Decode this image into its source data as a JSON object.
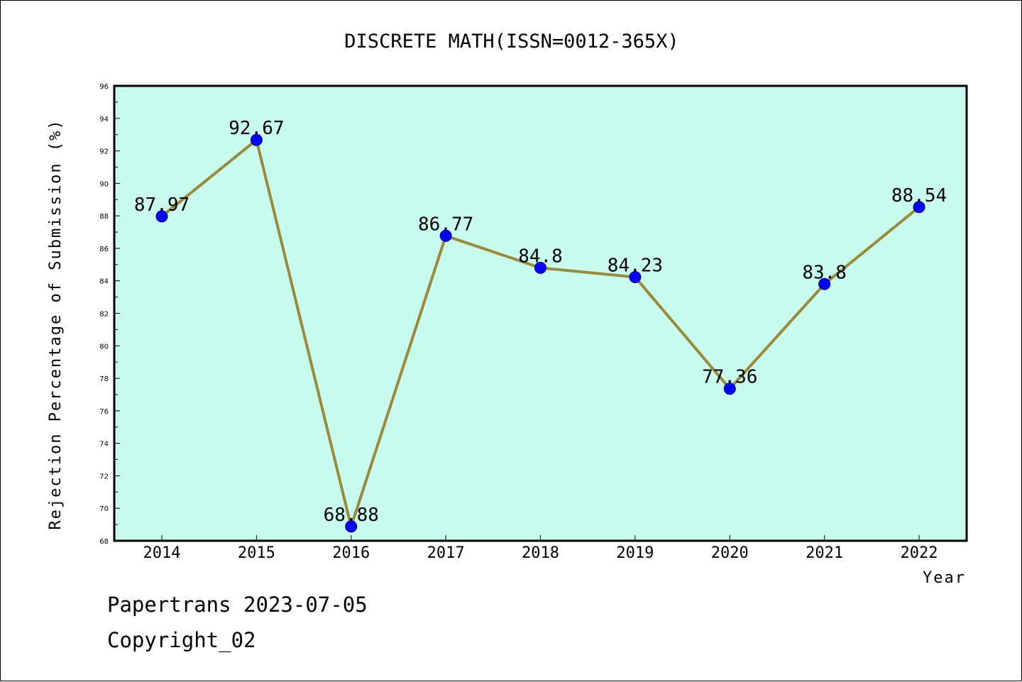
{
  "chart_data": {
    "type": "line",
    "title": "DISCRETE MATH(ISSN=0012-365X)",
    "xlabel": "Year",
    "ylabel": "Rejection Percentage of Submission (%)",
    "categories": [
      "2014",
      "2015",
      "2016",
      "2017",
      "2018",
      "2019",
      "2020",
      "2021",
      "2022"
    ],
    "values": [
      87.97,
      92.67,
      68.88,
      86.77,
      84.8,
      84.23,
      77.36,
      83.8,
      88.54
    ],
    "data_labels": [
      "87.97",
      "92.67",
      "68.88",
      "86.77",
      "84.8",
      "84.23",
      "77.36",
      "83.8",
      "88.54"
    ],
    "ylim": [
      68,
      96
    ],
    "yticks": [
      "68",
      "70",
      "72",
      "74",
      "76",
      "78",
      "80",
      "82",
      "84",
      "86",
      "88",
      "90",
      "92",
      "94",
      "96"
    ],
    "grid": false,
    "colors": {
      "plot_background": "#c8fcee",
      "line": "#9a8a3a",
      "marker": "#0000ff",
      "marker_edge": "#00008b"
    }
  },
  "footer": {
    "line1": "Papertrans 2023-07-05",
    "line2": "Copyright_02"
  }
}
